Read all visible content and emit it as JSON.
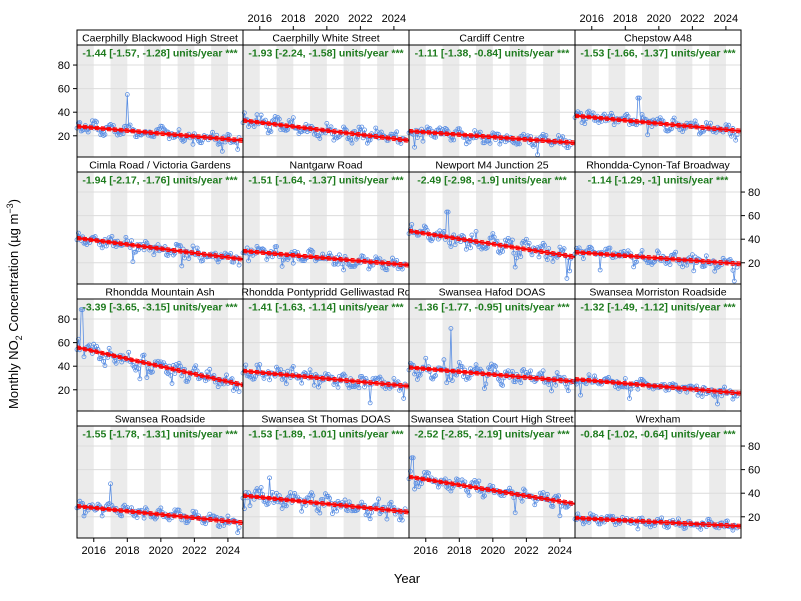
{
  "figure": {
    "ylabel": "Monthly NO₂ Concentration (µg m⁻³)",
    "ylabel_parts": {
      "main": "Monthly NO",
      "sub": "2",
      "mid": " Concentration (µg m",
      "sup": "−3",
      "end": ")"
    },
    "xlabel": "Year"
  },
  "colors": {
    "points": "#5b8fe3",
    "trend": "#ff0000",
    "slope_text": "#1e7b1e",
    "shade": "#ebebeb"
  },
  "chart_data": {
    "type": "scatter",
    "title": "",
    "xlabel": "Year",
    "ylabel": "Monthly NO₂ Concentration (µg m⁻³)",
    "xlim": [
      2015,
      2024.9
    ],
    "ylim": [
      2,
      97
    ],
    "x_ticks": [
      2016,
      2018,
      2020,
      2022,
      2024
    ],
    "y_ticks": [
      20,
      40,
      60,
      80
    ],
    "layout": "4 x 4 panels, shaded alternate years",
    "panels": [
      {
        "name": "Caerphilly Blackwood High Street",
        "slope_text": "-1.44 [-1.57, -1.28] units/year ***",
        "slope": -1.44,
        "trend_start": 28,
        "trend_end": 16,
        "noise": 4,
        "spikes": [
          [
            2018,
            55
          ]
        ]
      },
      {
        "name": "Caerphilly White Street",
        "slope_text": "-1.93 [-2.24, -1.58] units/year ***",
        "slope": -1.93,
        "trend_start": 33,
        "trend_end": 16,
        "noise": 5,
        "spikes": []
      },
      {
        "name": "Cardiff Centre",
        "slope_text": "-1.11 [-1.38, -0.84] units/year ***",
        "slope": -1.11,
        "trend_start": 24,
        "trend_end": 14,
        "noise": 4,
        "spikes": []
      },
      {
        "name": "Chepstow A48",
        "slope_text": "-1.53 [-1.66, -1.37] units/year ***",
        "slope": -1.53,
        "trend_start": 37,
        "trend_end": 24,
        "noise": 4,
        "spikes": [
          [
            2018.8,
            52
          ]
        ]
      },
      {
        "name": "Cimla Road / Victoria Gardens",
        "slope_text": "-1.94 [-2.17, -1.76] units/year ***",
        "slope": -1.94,
        "trend_start": 41,
        "trend_end": 23,
        "noise": 4,
        "spikes": []
      },
      {
        "name": "Nantgarw Road",
        "slope_text": "-1.51 [-1.64, -1.37] units/year ***",
        "slope": -1.51,
        "trend_start": 30,
        "trend_end": 18,
        "noise": 4,
        "spikes": []
      },
      {
        "name": "Newport M4 Junction 25",
        "slope_text": "-2.49 [-2.98, -1.9] units/year ***",
        "slope": -2.49,
        "trend_start": 47,
        "trend_end": 25,
        "noise": 6,
        "spikes": [
          [
            2017.3,
            63
          ]
        ]
      },
      {
        "name": "Rhondda-Cynon-Taf Broadway",
        "slope_text": "-1.14 [-1.29, -1] units/year ***",
        "slope": -1.14,
        "trend_start": 29,
        "trend_end": 19,
        "noise": 4,
        "spikes": []
      },
      {
        "name": "Rhondda Mountain Ash",
        "slope_text": "-3.39 [-3.65, -3.15] units/year ***",
        "slope": -3.39,
        "trend_start": 56,
        "trend_end": 24,
        "noise": 5,
        "spikes": [
          [
            2015.3,
            88
          ]
        ]
      },
      {
        "name": "Rhondda Pontypridd Gelliwastad Rd",
        "slope_text": "-1.41 [-1.63, -1.14] units/year ***",
        "slope": -1.41,
        "trend_start": 36,
        "trend_end": 23,
        "noise": 5,
        "spikes": []
      },
      {
        "name": "Swansea Hafod DOAS",
        "slope_text": "-1.36 [-1.77, -0.95] units/year ***",
        "slope": -1.36,
        "trend_start": 39,
        "trend_end": 27,
        "noise": 6,
        "spikes": [
          [
            2017.5,
            72
          ]
        ]
      },
      {
        "name": "Swansea Morriston Roadside",
        "slope_text": "-1.32 [-1.49, -1.12] units/year ***",
        "slope": -1.32,
        "trend_start": 29,
        "trend_end": 17,
        "noise": 4,
        "spikes": []
      },
      {
        "name": "Swansea Roadside",
        "slope_text": "-1.55 [-1.78, -1.31] units/year ***",
        "slope": -1.55,
        "trend_start": 29,
        "trend_end": 15,
        "noise": 4,
        "spikes": [
          [
            2017,
            48
          ]
        ]
      },
      {
        "name": "Swansea St Thomas DOAS",
        "slope_text": "-1.53 [-1.89, -1.01] units/year ***",
        "slope": -1.53,
        "trend_start": 38,
        "trend_end": 24,
        "noise": 6,
        "spikes": [
          [
            2016.6,
            53
          ]
        ]
      },
      {
        "name": "Swansea Station Court High Street",
        "slope_text": "-2.52 [-2.85, -2.19] units/year ***",
        "slope": -2.52,
        "trend_start": 54,
        "trend_end": 31,
        "noise": 5,
        "spikes": [
          [
            2015.2,
            70
          ]
        ]
      },
      {
        "name": "Wrexham",
        "slope_text": "-0.84 [-1.02, -0.64] units/year ***",
        "slope": -0.84,
        "trend_start": 19,
        "trend_end": 12,
        "noise": 3,
        "spikes": []
      }
    ]
  }
}
